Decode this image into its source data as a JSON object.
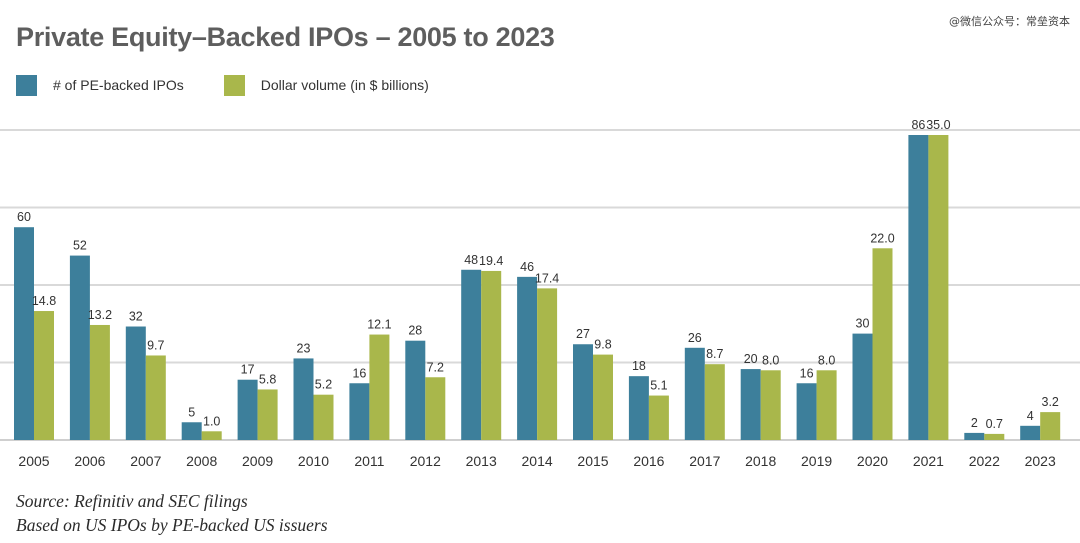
{
  "title": "Private Equity–Backed IPOs – 2005 to 2023",
  "watermark": "@微信公众号：常垒资本",
  "legend": {
    "count_label": "# of PE-backed IPOs",
    "dollar_label": "Dollar volume (in $ billions)"
  },
  "colors": {
    "count": "#3d7f9b",
    "dollar": "#a9b74b",
    "grid": "#d9d9d9"
  },
  "chart_data": {
    "type": "bar",
    "categories": [
      "2005",
      "2006",
      "2007",
      "2008",
      "2009",
      "2010",
      "2011",
      "2012",
      "2013",
      "2014",
      "2015",
      "2016",
      "2017",
      "2018",
      "2019",
      "2020",
      "2021",
      "2022",
      "2023"
    ],
    "series": [
      {
        "name": "# of PE-backed IPOs",
        "values": [
          60,
          52,
          32,
          5,
          17,
          23,
          16,
          28,
          48,
          46,
          27,
          18,
          26,
          20,
          16,
          30,
          86,
          2,
          4
        ],
        "labels": [
          "60",
          "52",
          "32",
          "5",
          "17",
          "23",
          "16",
          "28",
          "48",
          "46",
          "27",
          "18",
          "26",
          "20",
          "16",
          "30",
          "86",
          "2",
          "4"
        ]
      },
      {
        "name": "Dollar volume (in $ billions)",
        "values": [
          14.8,
          13.2,
          9.7,
          1.0,
          5.8,
          5.2,
          12.1,
          7.2,
          19.4,
          17.4,
          9.8,
          5.1,
          8.7,
          8.0,
          8.0,
          22.0,
          35.0,
          0.7,
          3.2
        ],
        "labels": [
          "14.8",
          "13.2",
          "9.7",
          "1.0",
          "5.8",
          "5.2",
          "12.1",
          "7.2",
          "19.4",
          "17.4",
          "9.8",
          "5.1",
          "8.7",
          "8.0",
          "8.0",
          "22.0",
          "35.0",
          "0.7",
          "3.2"
        ]
      }
    ],
    "grid": true,
    "legend_position": "top-left"
  },
  "source": {
    "line1": "Source: Refinitiv and SEC filings",
    "line2": "Based on US IPOs by PE-backed US issuers"
  }
}
